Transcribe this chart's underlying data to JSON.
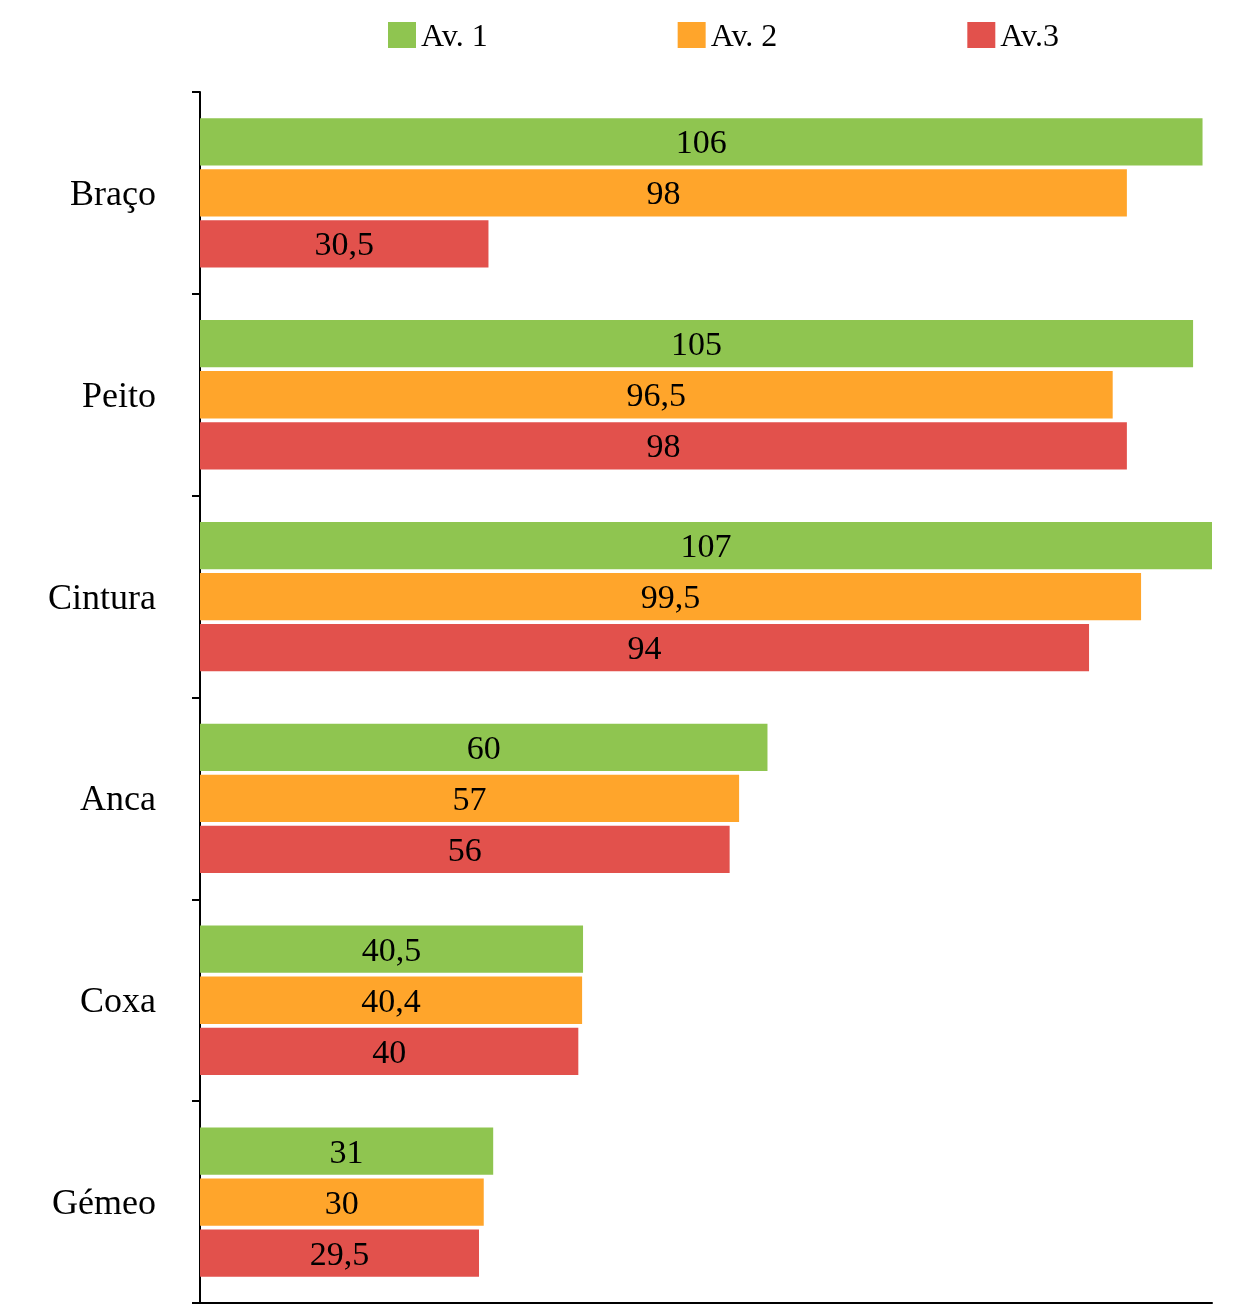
{
  "chart_data": {
    "type": "bar",
    "orientation": "horizontal",
    "relative": false,
    "categories": [
      "Braço",
      "Peito",
      "Cintura",
      "Anca",
      "Coxa",
      "Gémeo"
    ],
    "series": [
      {
        "name": "Av. 1",
        "color": "#8fc550",
        "values": [
          106,
          105,
          107,
          60,
          40.5,
          31
        ],
        "value_labels": [
          "106",
          "105",
          "107",
          "60",
          "40,5",
          "31"
        ]
      },
      {
        "name": "Av. 2",
        "color": "#ffa52b",
        "values": [
          98,
          96.5,
          99.5,
          57,
          40.4,
          30
        ],
        "value_labels": [
          "98",
          "96,5",
          "99,5",
          "57",
          "40,4",
          "30"
        ]
      },
      {
        "name": "Av.3",
        "color": "#e2514c",
        "values": [
          30.5,
          98,
          94,
          56,
          40,
          29.5
        ],
        "value_labels": [
          "30,5",
          "98",
          "94",
          "56",
          "40",
          "29,5"
        ]
      }
    ],
    "legend": "top",
    "tick_labels": "y",
    "grid": false
  }
}
